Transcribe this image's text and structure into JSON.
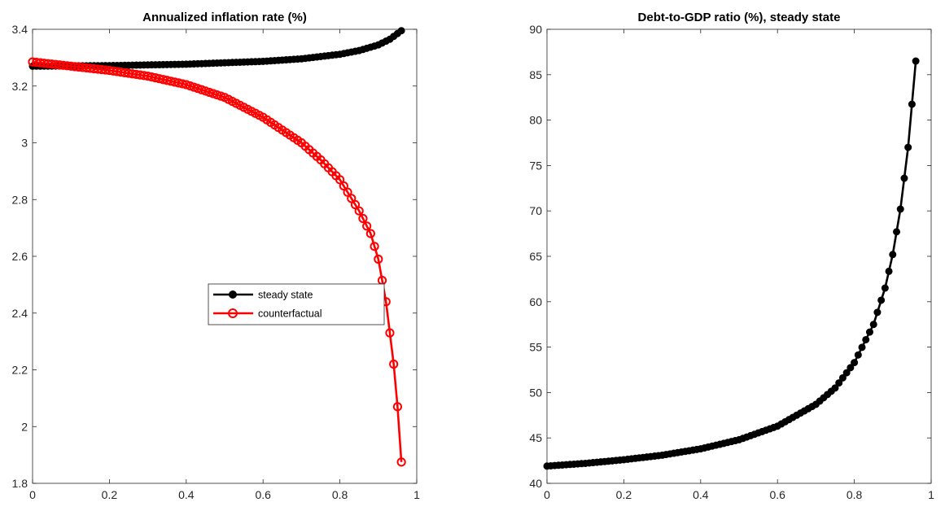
{
  "chart_data": [
    {
      "type": "line",
      "title": "Annualized inflation rate (%)",
      "xlabel": "",
      "ylabel": "",
      "xlim": [
        0,
        1
      ],
      "ylim": [
        1.8,
        3.4
      ],
      "xticks": [
        "0",
        "0.2",
        "0.4",
        "0.6",
        "0.8",
        "1"
      ],
      "yticks": [
        "1.8",
        "2",
        "2.2",
        "2.4",
        "2.6",
        "2.8",
        "3",
        "3.2",
        "3.4"
      ],
      "grid": false,
      "legend_position": "center-right",
      "series": [
        {
          "name": "steady state",
          "color": "#000000",
          "marker": "filled-circle",
          "x_range": [
            0,
            0.96
          ],
          "n_points": 97,
          "points": [
            [
              0,
              3.27
            ],
            [
              0.2,
              3.272
            ],
            [
              0.4,
              3.277
            ],
            [
              0.6,
              3.287
            ],
            [
              0.7,
              3.296
            ],
            [
              0.8,
              3.312
            ],
            [
              0.85,
              3.325
            ],
            [
              0.9,
              3.345
            ],
            [
              0.93,
              3.365
            ],
            [
              0.96,
              3.395
            ]
          ]
        },
        {
          "name": "counterfactual",
          "color": "#ff0000",
          "marker": "open-circle",
          "x_range": [
            0,
            0.96
          ],
          "n_points": 97,
          "points": [
            [
              0,
              3.285
            ],
            [
              0.1,
              3.27
            ],
            [
              0.2,
              3.255
            ],
            [
              0.3,
              3.235
            ],
            [
              0.4,
              3.205
            ],
            [
              0.5,
              3.16
            ],
            [
              0.6,
              3.09
            ],
            [
              0.7,
              3.0
            ],
            [
              0.75,
              2.94
            ],
            [
              0.8,
              2.87
            ],
            [
              0.85,
              2.76
            ],
            [
              0.88,
              2.68
            ],
            [
              0.9,
              2.59
            ],
            [
              0.92,
              2.44
            ],
            [
              0.94,
              2.22
            ],
            [
              0.95,
              2.07
            ],
            [
              0.96,
              1.875
            ]
          ]
        }
      ]
    },
    {
      "type": "line",
      "title": "Debt-to-GDP ratio (%), steady state",
      "xlabel": "",
      "ylabel": "",
      "xlim": [
        0,
        1
      ],
      "ylim": [
        40,
        90
      ],
      "xticks": [
        "0",
        "0.2",
        "0.4",
        "0.6",
        "0.8",
        "1"
      ],
      "yticks": [
        "40",
        "45",
        "50",
        "55",
        "60",
        "65",
        "70",
        "75",
        "80",
        "85",
        "90"
      ],
      "grid": false,
      "series": [
        {
          "color": "#000000",
          "marker": "filled-circle",
          "x_range": [
            0,
            0.96
          ],
          "n_points": 97,
          "points": [
            [
              0,
              41.9
            ],
            [
              0.1,
              42.2
            ],
            [
              0.2,
              42.6
            ],
            [
              0.3,
              43.1
            ],
            [
              0.4,
              43.8
            ],
            [
              0.5,
              44.8
            ],
            [
              0.6,
              46.3
            ],
            [
              0.7,
              48.7
            ],
            [
              0.75,
              50.5
            ],
            [
              0.8,
              53.3
            ],
            [
              0.85,
              57.5
            ],
            [
              0.88,
              61.5
            ],
            [
              0.9,
              65.2
            ],
            [
              0.92,
              70.2
            ],
            [
              0.94,
              77.0
            ],
            [
              0.96,
              86.5
            ]
          ]
        }
      ]
    }
  ]
}
